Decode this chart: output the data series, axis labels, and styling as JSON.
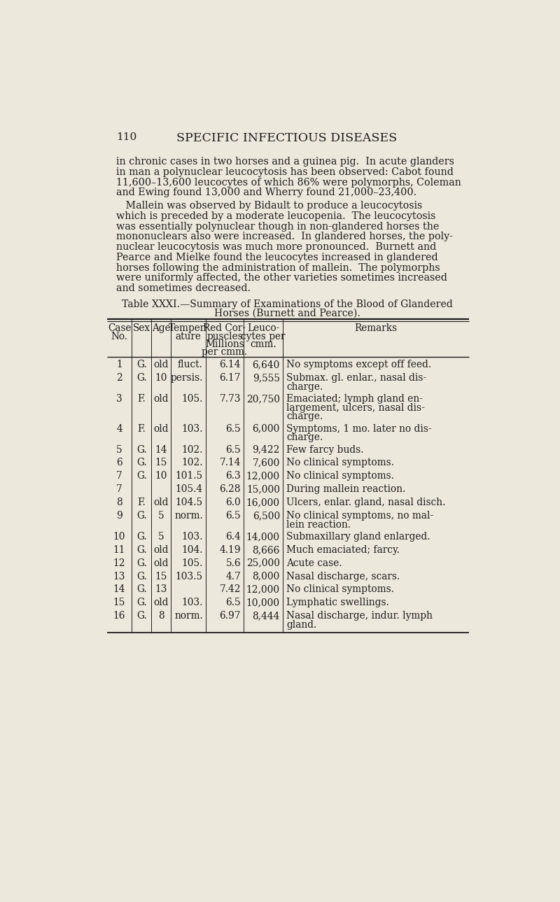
{
  "page_number": "110",
  "page_title": "SPECIFIC INFECTIOUS DISEASES",
  "bg_color": "#ede8dc",
  "text_color": "#1c1c1c",
  "para1_lines": [
    "in chronic cases in two horses and a guinea pig.  In acute glanders",
    "in man a polynuclear leucocytosis has been observed: Cabot found",
    "11,600–13,600 leucocytes of which 86% were polymorphs, Coleman",
    "and Ewing found 13,000 and Wherry found 21,000–23,400."
  ],
  "para2_lines": [
    "   Mallein was observed by Bidault to produce a leucocytosis",
    "which is preceded by a moderate leucopenia.  The leucocytosis",
    "was essentially polynuclear though in non-glandered horses the",
    "mononuclears also were increased.  In glandered horses, the poly-",
    "nuclear leucocytosis was much more pronounced.  Burnett and",
    "Pearce and Mielke found the leucocytes increased in glandered",
    "horses following the administration of mallein.  The polymorphs",
    "were uniformly affected, the other varieties sometimes increased",
    "and sometimes decreased."
  ],
  "table_title_line1": "Table XXXI.—Summary of Examinations of the Blood of Glandered",
  "table_title_line2": "Horses (Burnett and Pearce).",
  "rows": [
    [
      "1",
      "G.",
      "old",
      "fluct.",
      "6.14",
      "6,640",
      "No symptoms except off feed."
    ],
    [
      "2",
      "G.",
      "10",
      "persis.",
      "6.17",
      "9,555",
      "Submax. gl. enlar., nasal dis-\ncharge."
    ],
    [
      "3",
      "F.",
      "old",
      "105.",
      "7.73",
      "20,750",
      "Emaciated; lymph gland en-\nlargement, ulcers, nasal dis-\ncharge."
    ],
    [
      "4",
      "F.",
      "old",
      "103.",
      "6.5",
      "6,000",
      "Symptoms, 1 mo. later no dis-\ncharge."
    ],
    [
      "5",
      "G.",
      "14",
      "102.",
      "6.5",
      "9,422",
      "Few farcy buds."
    ],
    [
      "6",
      "G.",
      "15",
      "102.",
      "7.14",
      "7,600",
      "No clinical symptoms."
    ],
    [
      "7",
      "G.",
      "10",
      "101.5",
      "6.3",
      "12,000",
      "No clinical symptoms."
    ],
    [
      "7",
      "",
      "",
      "105.4",
      "6.28",
      "15,000",
      "During mallein reaction."
    ],
    [
      "8",
      "F.",
      "old",
      "104.5",
      "6.0",
      "16,000",
      "Ulcers, enlar. gland, nasal disch."
    ],
    [
      "9",
      "G.",
      "5",
      "norm.",
      "6.5",
      "6,500",
      "No clinical symptoms, no mal-\nlein reaction."
    ],
    [
      "10",
      "G.",
      "5",
      "103.",
      "6.4",
      "14,000",
      "Submaxillary gland enlarged."
    ],
    [
      "11",
      "G.",
      "old",
      "104.",
      "4.19",
      "8,666",
      "Much emaciated; farcy."
    ],
    [
      "12",
      "G.",
      "old",
      "105.",
      "5.6",
      "25,000",
      "Acute case."
    ],
    [
      "13",
      "G.",
      "15",
      "103.5",
      "4.7",
      "8,000",
      "Nasal discharge, scars."
    ],
    [
      "14",
      "G.",
      "13",
      "",
      "7.42",
      "12,000",
      "No clinical symptoms."
    ],
    [
      "15",
      "G.",
      "old",
      "103.",
      "6.5",
      "10,000",
      "Lymphatic swellings."
    ],
    [
      "16",
      "G.",
      "8",
      "norm.",
      "6.97",
      "8,444",
      "Nasal discharge, indur. lymph\ngland."
    ]
  ],
  "col_headers_line1": [
    "Case",
    "Sex",
    "Age",
    "Temper-",
    "Red Cor-",
    "Leuco-",
    "Remarks"
  ],
  "col_headers_line2": [
    "No.",
    "",
    "",
    "ature",
    "puscles",
    "cytes per",
    ""
  ],
  "col_headers_line3": [
    "",
    "",
    "",
    "",
    "Millions",
    "cmm.",
    ""
  ],
  "col_headers_line4": [
    "",
    "",
    "",
    "",
    "per cmm.",
    "",
    ""
  ]
}
